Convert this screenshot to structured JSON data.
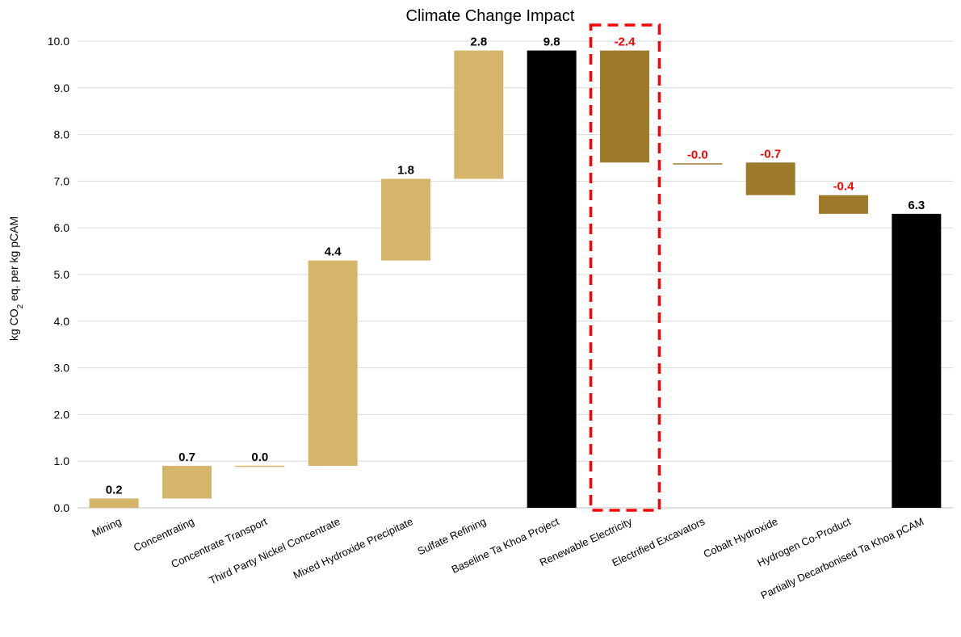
{
  "chart_data": {
    "type": "bar",
    "subtype": "waterfall",
    "title": "Climate Change Impact",
    "ylabel_prefix": "kg CO",
    "ylabel_sub": "2",
    "ylabel_suffix": " eq. per kg pCAM",
    "xlabel": "",
    "ylim": [
      0,
      10
    ],
    "y_ticks": [
      "0.0",
      "1.0",
      "2.0",
      "3.0",
      "4.0",
      "5.0",
      "6.0",
      "7.0",
      "8.0",
      "9.0",
      "10.0"
    ],
    "grid": true,
    "categories": [
      "Mining",
      "Concentrating",
      "Concentrate Transport",
      "Third Party Nickel Concentrate",
      "Mixed Hydroxide Precipitate",
      "Sulfate Refining",
      "Baseline Ta Khoa Project",
      "Renewable Electricity",
      "Electrified Excavators",
      "Cobalt Hydroxide",
      "Hydrogen Co-Product",
      "Partially Decarbonised Ta Khoa pCAM"
    ],
    "bars": [
      {
        "start": 0.0,
        "end": 0.2,
        "label": "0.2",
        "kind": "increase"
      },
      {
        "start": 0.2,
        "end": 0.9,
        "label": "0.7",
        "kind": "increase"
      },
      {
        "start": 0.88,
        "end": 0.9,
        "label": "0.0",
        "kind": "increase"
      },
      {
        "start": 0.9,
        "end": 5.3,
        "label": "4.4",
        "kind": "increase"
      },
      {
        "start": 5.3,
        "end": 7.05,
        "label": "1.8",
        "kind": "increase"
      },
      {
        "start": 7.05,
        "end": 9.8,
        "label": "2.8",
        "kind": "increase"
      },
      {
        "start": 0.0,
        "end": 9.8,
        "label": "9.8",
        "kind": "total"
      },
      {
        "start": 9.8,
        "end": 7.4,
        "label": "-2.4",
        "kind": "decrease"
      },
      {
        "start": 7.38,
        "end": 7.36,
        "label": "-0.0",
        "kind": "decrease"
      },
      {
        "start": 7.4,
        "end": 6.7,
        "label": "-0.7",
        "kind": "decrease"
      },
      {
        "start": 6.7,
        "end": 6.3,
        "label": "-0.4",
        "kind": "decrease"
      },
      {
        "start": 0.0,
        "end": 6.3,
        "label": "6.3",
        "kind": "total"
      }
    ],
    "highlight_index": 7,
    "colors": {
      "increase": "#d4b56a",
      "decrease": "#9e7b2a",
      "total": "#000000",
      "positive_label": "#000000",
      "negative_label": "#ff0000",
      "highlight_box": "#ff0000"
    }
  }
}
